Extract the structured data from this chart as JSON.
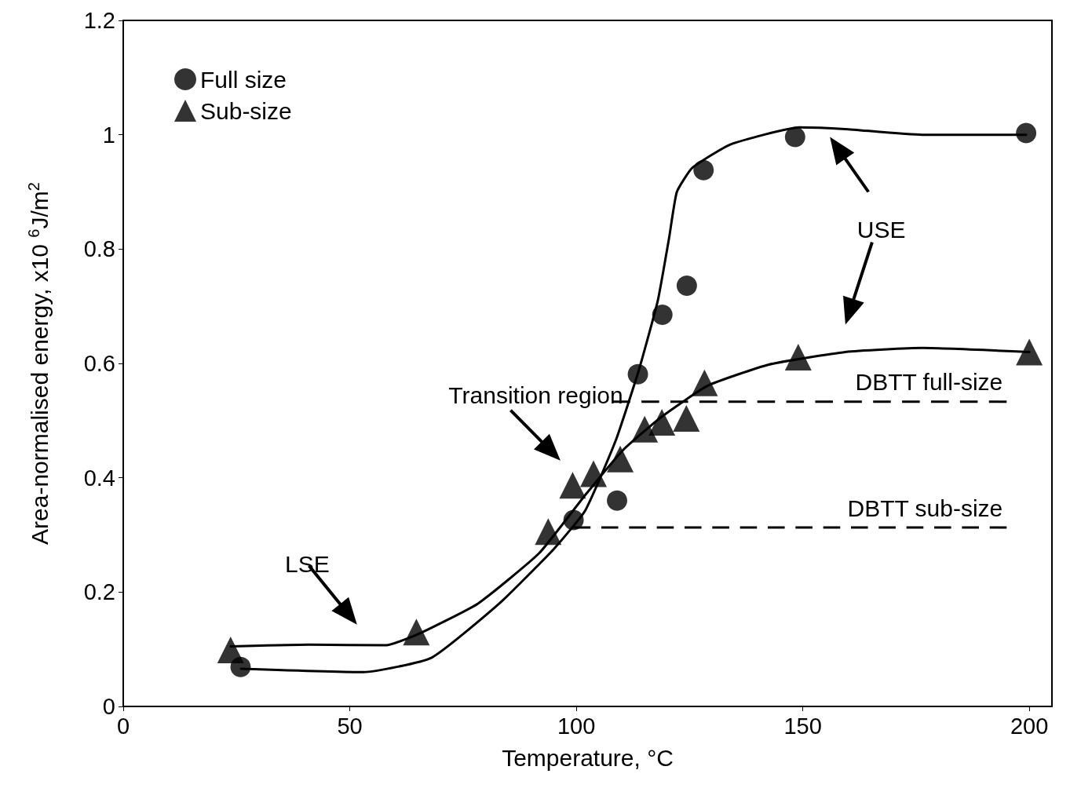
{
  "chart_data": {
    "type": "scatter",
    "xlabel": "Temperature, °C",
    "ylabel": "Area-normalised energy, x10 $^{6}$J/m$^{2}$",
    "xlim": [
      0,
      205
    ],
    "xticks": [
      0,
      50,
      100,
      150,
      200
    ],
    "ylim": [
      0,
      1.2
    ],
    "yticks": [
      0,
      0.2,
      0.4,
      0.6,
      0.8,
      1,
      1.2
    ],
    "grid": false,
    "legend": "top left",
    "annotations": [
      "Transition region",
      "LSE",
      "USE"
    ],
    "series": [
      {
        "name": "Full size",
        "marker": "circle",
        "color": "#000000",
        "x": [
          25.9,
          99.4,
          109,
          113.6,
          119,
          124.4,
          128.1,
          148.3,
          199.3
        ],
        "values": [
          0.069,
          0.326,
          0.36,
          0.581,
          0.685,
          0.736,
          0.938,
          0.996,
          1.003
        ]
      },
      {
        "name": "Sub-size",
        "marker": "triangle",
        "color": "#000000",
        "x": [
          23.7,
          64.7,
          93.8,
          99.2,
          103.8,
          109.7,
          115.1,
          118.9,
          124.3,
          128.3,
          149,
          200
        ],
        "values": [
          0.099,
          0.13,
          0.306,
          0.387,
          0.407,
          0.433,
          0.485,
          0.497,
          0.504,
          0.566,
          0.611,
          0.62
        ]
      },
      {
        "type": "line",
        "marker": "none",
        "color": "#000000",
        "x": [
          26,
          53,
          68,
          83,
          95,
          102,
          108.7,
          113.8,
          118,
          120.5,
          122.2,
          125.6,
          134,
          149.3,
          159.4,
          176.3,
          199.3
        ],
        "values": [
          0.066,
          0.06,
          0.085,
          0.18,
          0.275,
          0.343,
          0.465,
          0.588,
          0.71,
          0.82,
          0.9,
          0.942,
          0.983,
          1.013,
          1.01,
          1.0,
          1.0
        ]
      },
      {
        "type": "line",
        "marker": "none",
        "color": "#000000",
        "x": [
          23.7,
          41,
          58,
          64.7,
          78.3,
          91.8,
          102,
          110.4,
          118.9,
          129,
          142.5,
          159.4,
          176.3,
          200
        ],
        "values": [
          0.105,
          0.108,
          0.107,
          0.125,
          0.18,
          0.268,
          0.37,
          0.449,
          0.507,
          0.561,
          0.598,
          0.62,
          0.627,
          0.62
        ]
      },
      {
        "name": "DBTT full-size",
        "type": "line",
        "marker": "none",
        "line_style": "dashed",
        "color": "#000000",
        "x": [
          108,
          195
        ],
        "values": [
          0.533,
          0.533
        ]
      },
      {
        "name": "DBTT sub-size",
        "type": "line",
        "marker": "none",
        "line_style": "dashed",
        "color": "#000000",
        "x": [
          99.4,
          195
        ],
        "values": [
          0.313,
          0.313
        ]
      }
    ]
  }
}
